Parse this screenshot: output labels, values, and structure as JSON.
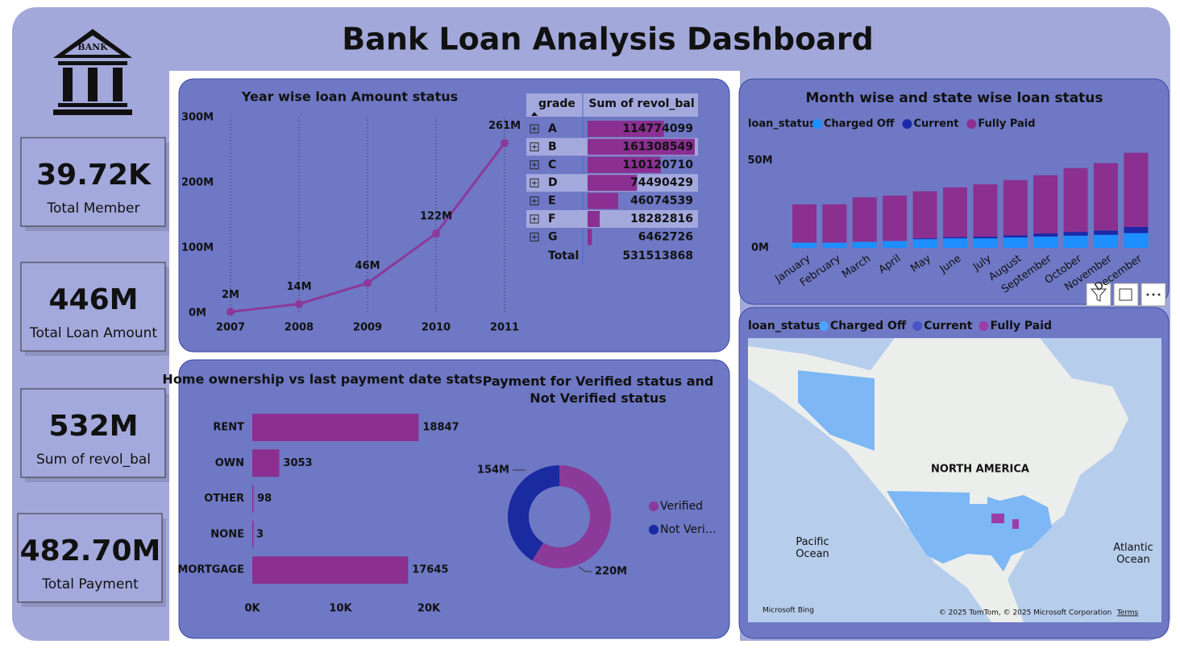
{
  "header": {
    "title": "Bank Loan Analysis Dashboard",
    "logo_text": "BANK"
  },
  "kpis": [
    {
      "value": "39.72K",
      "label": "Total Member"
    },
    {
      "value": "446M",
      "label": "Total Loan Amount"
    },
    {
      "value": "532M",
      "label": "Sum of revol_bal"
    },
    {
      "value": "482.70M",
      "label": "Total Payment"
    }
  ],
  "table": {
    "columns": [
      "grade",
      "Sum of revol_bal"
    ],
    "rows": [
      [
        "A",
        114774099
      ],
      [
        "B",
        161308549
      ],
      [
        "C",
        110120710
      ],
      [
        "D",
        74490429
      ],
      [
        "E",
        46074539
      ],
      [
        "F",
        18282816
      ],
      [
        "G",
        6462726
      ]
    ],
    "total": [
      "Total",
      531513868
    ],
    "bar_color": "#8b2f92"
  },
  "chart_data": [
    {
      "type": "line",
      "title": "Year wise loan Amount status",
      "categories": [
        "2007",
        "2008",
        "2009",
        "2010",
        "2011"
      ],
      "values": [
        2,
        14,
        46,
        122,
        261
      ],
      "value_labels": [
        "2M",
        "14M",
        "46M",
        "122M",
        "261M"
      ],
      "color": "#8b3a9a",
      "grid": true,
      "ylim": [
        0,
        300
      ],
      "yticks": [
        {
          "value": 0,
          "label": "0M"
        },
        {
          "value": 100,
          "label": "100M"
        },
        {
          "value": 200,
          "label": "200M"
        },
        {
          "value": 300,
          "label": "300M"
        }
      ]
    },
    {
      "type": "stacked-bar",
      "title": "Month wise and state wise loan status",
      "legend_title": "loan_status",
      "legend": "top-left",
      "categories": [
        "January",
        "February",
        "March",
        "April",
        "May",
        "June",
        "July",
        "August",
        "September",
        "October",
        "November",
        "December"
      ],
      "series": [
        {
          "name": "Charged Off",
          "color": "#1e8fff",
          "values": [
            3,
            3,
            3.5,
            4,
            5,
            5.5,
            5.5,
            6,
            6.5,
            7,
            7.5,
            8.5
          ]
        },
        {
          "name": "Current",
          "color": "#1a2aa8",
          "values": [
            0,
            0,
            0,
            0,
            0.5,
            0.7,
            1,
            1.2,
            1.8,
            2.2,
            2.5,
            3.5
          ]
        },
        {
          "name": "Fully Paid",
          "color": "#8b3090",
          "values": [
            22,
            22,
            25.5,
            26,
            27,
            28.5,
            30,
            31.7,
            33.4,
            36.6,
            38.6,
            42.6
          ]
        }
      ],
      "ylim": [
        0,
        60
      ],
      "yticks": [
        {
          "value": 0,
          "label": "0M"
        },
        {
          "value": 50,
          "label": "50M"
        }
      ]
    },
    {
      "type": "hbar",
      "title": "Home ownership vs last payment date stats",
      "categories": [
        "RENT",
        "OWN",
        "OTHER",
        "NONE",
        "MORTGAGE"
      ],
      "values": [
        18847,
        3053,
        98,
        3,
        17645
      ],
      "color": "#8b3090",
      "xlim": [
        0,
        20000
      ],
      "xticks": [
        {
          "value": 0,
          "label": "0K"
        },
        {
          "value": 10000,
          "label": "10K"
        },
        {
          "value": 20000,
          "label": "20K"
        }
      ]
    },
    {
      "type": "donut",
      "title": "Payment for Verified status and Not Verified status",
      "categories": [
        "Verified",
        "Not Veri…"
      ],
      "values": [
        220,
        154
      ],
      "value_labels": [
        "220M",
        "154M"
      ],
      "colors": [
        "#8b3a9a",
        "#1a2aa0"
      ]
    }
  ],
  "map": {
    "legend_title": "loan_status",
    "legend": [
      {
        "name": "Charged Off",
        "color": "#4aa6ff"
      },
      {
        "name": "Current",
        "color": "#4a55c5"
      },
      {
        "name": "Fully Paid",
        "color": "#9b3ea8"
      }
    ],
    "labels": [
      "NORTH AMERICA",
      "Pacific Ocean",
      "Atlantic Ocean"
    ],
    "attribution": "© 2025 TomTom, © 2025 Microsoft Corporation",
    "terms": "Terms",
    "provider": "Microsoft Bing"
  }
}
